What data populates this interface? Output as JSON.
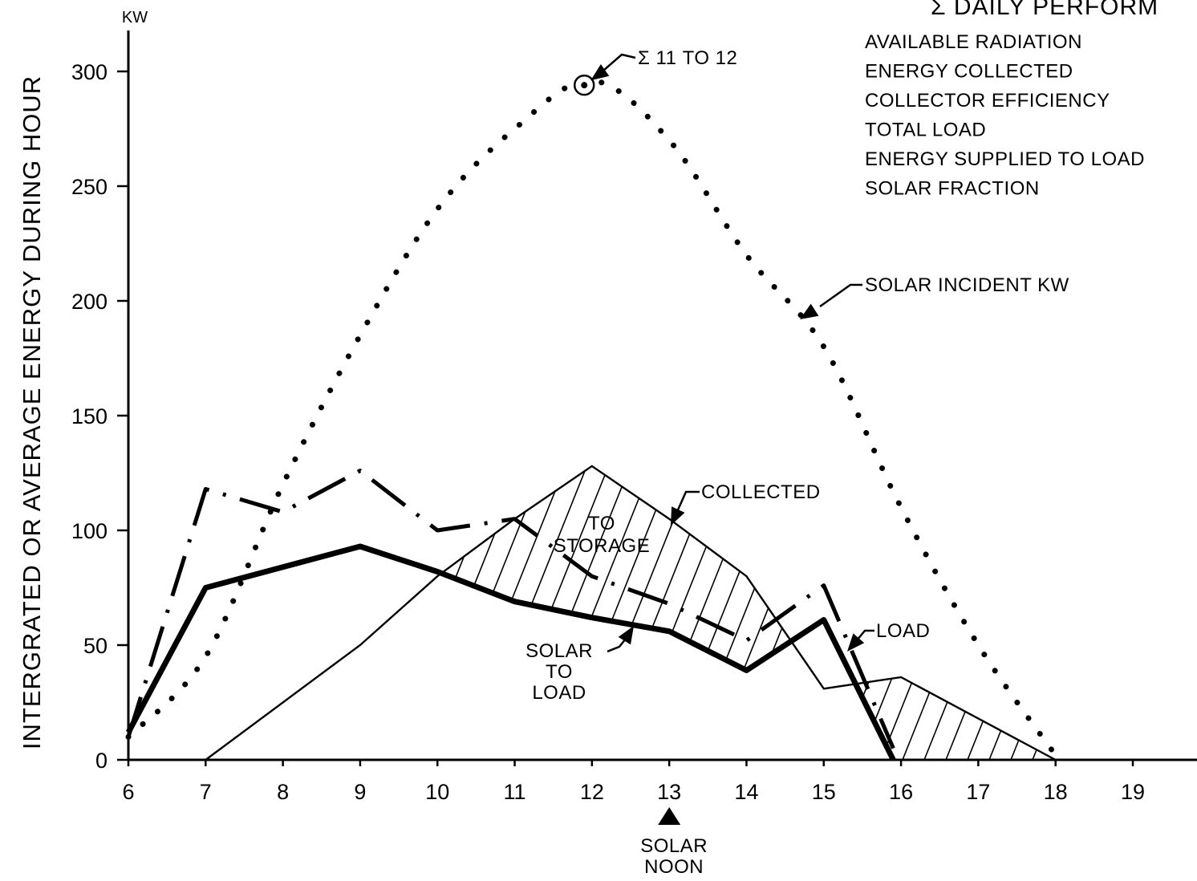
{
  "chart_data": {
    "type": "line",
    "title": "Σ DAILY PERFORM",
    "xlabel": "",
    "ylabel": "INTERGRATED OR AVERAGE ENERGY DURING HOUR",
    "y_unit": "KW",
    "xlim": [
      6,
      19
    ],
    "ylim": [
      0,
      300
    ],
    "x_ticks": [
      "6",
      "7",
      "8",
      "9",
      "10",
      "11",
      "12",
      "13",
      "14",
      "15",
      "16",
      "17",
      "18",
      "19"
    ],
    "y_ticks": [
      "0",
      "50",
      "100",
      "150",
      "200",
      "250",
      "300"
    ],
    "series": [
      {
        "name": "SOLAR INCIDENT KW",
        "style": "dotted",
        "x": [
          6,
          7,
          8,
          9,
          10,
          11,
          12,
          13,
          14,
          15,
          16,
          17,
          18
        ],
        "y": [
          10,
          45,
          120,
          185,
          240,
          275,
          296,
          270,
          220,
          180,
          110,
          50,
          2
        ]
      },
      {
        "name": "COLLECTED",
        "style": "thin",
        "x": [
          7,
          9,
          10,
          11,
          12,
          13,
          14,
          15,
          16,
          18
        ],
        "y": [
          0,
          50,
          80,
          105,
          128,
          105,
          80,
          31,
          36,
          0
        ]
      },
      {
        "name": "LOAD",
        "style": "dash-dot",
        "x": [
          6,
          7,
          8,
          9,
          10,
          11,
          12,
          13,
          14,
          15,
          15.9
        ],
        "y": [
          10,
          118,
          108,
          126,
          100,
          105,
          80,
          68,
          52,
          76,
          5
        ]
      },
      {
        "name": "SOLAR TO LOAD",
        "style": "thick",
        "x": [
          6,
          7,
          9,
          10,
          11,
          12,
          13,
          14,
          15,
          15.9
        ],
        "y": [
          12,
          75,
          93,
          82,
          69,
          62,
          56,
          39,
          61,
          0
        ]
      }
    ],
    "annotations": {
      "peak_label": "Σ 11 TO 12",
      "peak_x": 11.9,
      "peak_y": 294,
      "to_storage": [
        "TO",
        "STORAGE"
      ],
      "solar_to_load": [
        "SOLAR",
        "TO",
        "LOAD"
      ],
      "collected": "COLLECTED",
      "load": "LOAD",
      "solar_incident": "SOLAR INCIDENT KW",
      "solar_noon": [
        "SOLAR",
        "NOON"
      ]
    },
    "legend": {
      "position": "top-right",
      "items": [
        "AVAILABLE RADIATION",
        "ENERGY COLLECTED",
        "COLLECTOR EFFICIENCY",
        "TOTAL LOAD",
        "ENERGY SUPPLIED TO LOAD",
        "SOLAR FRACTION"
      ]
    },
    "grid": false
  }
}
